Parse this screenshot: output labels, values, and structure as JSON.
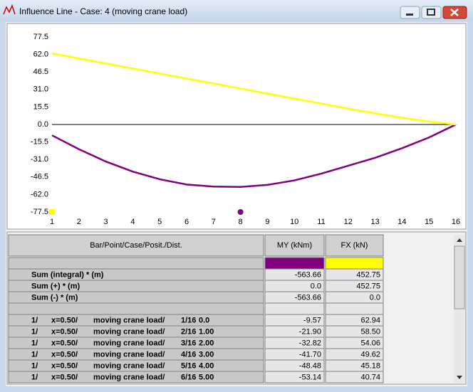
{
  "window": {
    "title": "Influence Line - Case: 4 (moving crane load)"
  },
  "chart_data": {
    "type": "line",
    "x": [
      1,
      2,
      3,
      4,
      5,
      6,
      7,
      8,
      9,
      10,
      11,
      12,
      13,
      14,
      15,
      16
    ],
    "series": [
      {
        "name": "MY (kNm)",
        "color": "#800080",
        "values": [
          -9.57,
          -21.9,
          -32.82,
          -41.7,
          -48.48,
          -53.14,
          -55.0,
          -55.3,
          -53.5,
          -49.5,
          -43.5,
          -36.5,
          -29.5,
          -21.0,
          -11.5,
          0
        ]
      },
      {
        "name": "FX (kN)",
        "color": "#ffff00",
        "values": [
          62.94,
          58.5,
          54.06,
          49.62,
          45.18,
          40.74,
          36.3,
          31.86,
          27.42,
          22.98,
          18.54,
          14.1,
          9.9,
          6.0,
          2.7,
          0
        ]
      }
    ],
    "xlim": [
      1,
      16
    ],
    "xticks": [
      1,
      2,
      3,
      4,
      5,
      6,
      7,
      8,
      9,
      10,
      11,
      12,
      13,
      14,
      15,
      16
    ],
    "ylim": [
      -77.5,
      77.5
    ],
    "yticks": [
      77.5,
      {
        "value": 62,
        "label": "62.0"
      },
      46.5,
      {
        "value": 31,
        "label": "31.0"
      },
      15.5,
      {
        "value": 0,
        "label": "0.0"
      },
      -15.5,
      {
        "value": -31,
        "label": "-31.0"
      },
      -46.5,
      {
        "value": -62,
        "label": "-62.0"
      },
      -77.5
    ]
  },
  "table": {
    "header": "Bar/Point/Case/Posit./Dist.",
    "summary_rows": [
      {
        "label": "Sum (integral) * (m)",
        "my": "-563.66",
        "fx": "452.75"
      },
      {
        "label": "Sum (+) * (m)",
        "my": "0.0",
        "fx": "452.75"
      },
      {
        "label": "Sum (-) * (m)",
        "my": "-563.66",
        "fx": "0.0"
      }
    ],
    "rows": [
      {
        "bar": "1/",
        "pos": "x=0.50/",
        "case": "moving crane load/",
        "point": "1/16",
        "dist": "0.0",
        "my": "-9.57",
        "fx": "62.94"
      },
      {
        "bar": "1/",
        "pos": "x=0.50/",
        "case": "moving crane load/",
        "point": "2/16",
        "dist": "1.00",
        "my": "-21.90",
        "fx": "58.50"
      },
      {
        "bar": "1/",
        "pos": "x=0.50/",
        "case": "moving crane load/",
        "point": "3/16",
        "dist": "2.00",
        "my": "-32.82",
        "fx": "54.06"
      },
      {
        "bar": "1/",
        "pos": "x=0.50/",
        "case": "moving crane load/",
        "point": "4/16",
        "dist": "3.00",
        "my": "-41.70",
        "fx": "49.62"
      },
      {
        "bar": "1/",
        "pos": "x=0.50/",
        "case": "moving crane load/",
        "point": "5/16",
        "dist": "4.00",
        "my": "-48.48",
        "fx": "45.18"
      },
      {
        "bar": "1/",
        "pos": "x=0.50/",
        "case": "moving crane load/",
        "point": "6/16",
        "dist": "5.00",
        "my": "-53.14",
        "fx": "40.74"
      }
    ]
  }
}
